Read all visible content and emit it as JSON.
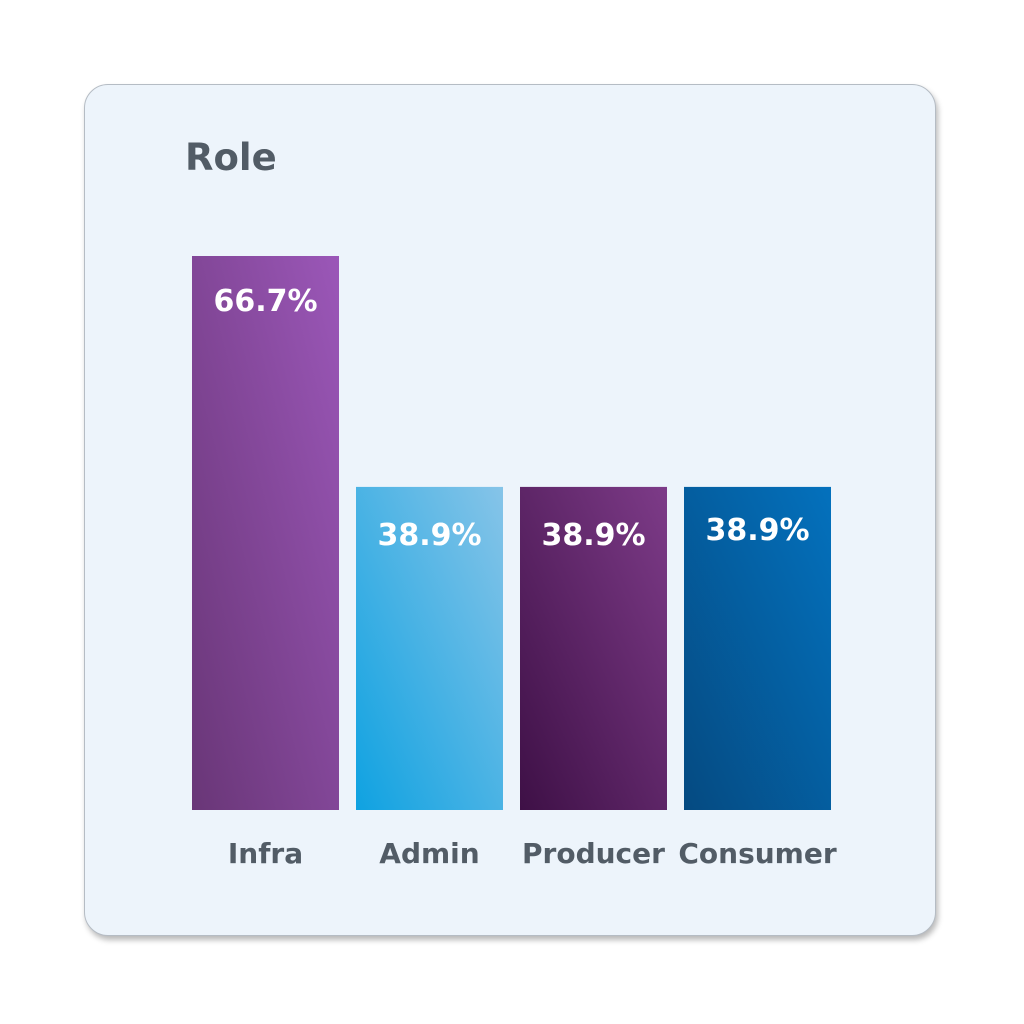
{
  "chart_data": {
    "type": "bar",
    "title": "Role",
    "categories": [
      "Infra",
      "Admin",
      "Producer",
      "Consumer"
    ],
    "values": [
      66.7,
      38.9,
      38.9,
      38.9
    ],
    "value_labels": [
      "66.7%",
      "38.9%",
      "38.9%",
      "38.9%"
    ],
    "xlabel": "",
    "ylabel": "",
    "grid": false,
    "colors": [
      {
        "from": "#9b57b8",
        "to": "#693677"
      },
      {
        "from": "#86c4e8",
        "to": "#0fa2e1"
      },
      {
        "from": "#7d3b88",
        "to": "#3e1046"
      },
      {
        "from": "#0471bd",
        "to": "#054a81"
      }
    ]
  }
}
